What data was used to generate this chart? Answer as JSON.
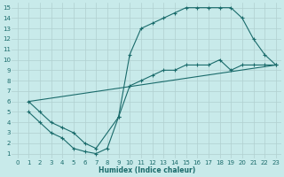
{
  "xlabel": "Humidex (Indice chaleur)",
  "ylabel": "",
  "bg_color": "#c8eaea",
  "grid_color": "#b0d0d0",
  "line_color": "#1a6b6b",
  "xlim": [
    -0.5,
    23.5
  ],
  "ylim": [
    0.5,
    15.5
  ],
  "xticks": [
    0,
    1,
    2,
    3,
    4,
    5,
    6,
    7,
    8,
    9,
    10,
    11,
    12,
    13,
    14,
    15,
    16,
    17,
    18,
    19,
    20,
    21,
    22,
    23
  ],
  "yticks": [
    1,
    2,
    3,
    4,
    5,
    6,
    7,
    8,
    9,
    10,
    11,
    12,
    13,
    14,
    15
  ],
  "line_straight": {
    "x": [
      1,
      23
    ],
    "y": [
      6,
      9.5
    ]
  },
  "line_lower": {
    "x": [
      1,
      2,
      3,
      4,
      5,
      6,
      7,
      8,
      9,
      10,
      11,
      12,
      13,
      14,
      15,
      16,
      17,
      18,
      19,
      20,
      21,
      22,
      23
    ],
    "y": [
      5,
      4,
      3,
      2.5,
      1.5,
      1.2,
      1,
      1.5,
      4.5,
      7.5,
      8,
      8.5,
      9,
      9,
      9.5,
      9.5,
      9.5,
      10,
      9,
      9.5,
      9.5,
      9.5,
      9.5
    ]
  },
  "line_upper": {
    "x": [
      1,
      2,
      3,
      4,
      5,
      6,
      7,
      9,
      10,
      11,
      12,
      13,
      14,
      15,
      16,
      17,
      18,
      19,
      20,
      21,
      22,
      23
    ],
    "y": [
      6,
      5,
      4,
      3.5,
      3,
      2,
      1.5,
      4.5,
      10.5,
      13,
      13.5,
      14,
      14.5,
      15,
      15,
      15,
      15,
      15,
      14,
      12,
      10.5,
      9.5
    ]
  }
}
